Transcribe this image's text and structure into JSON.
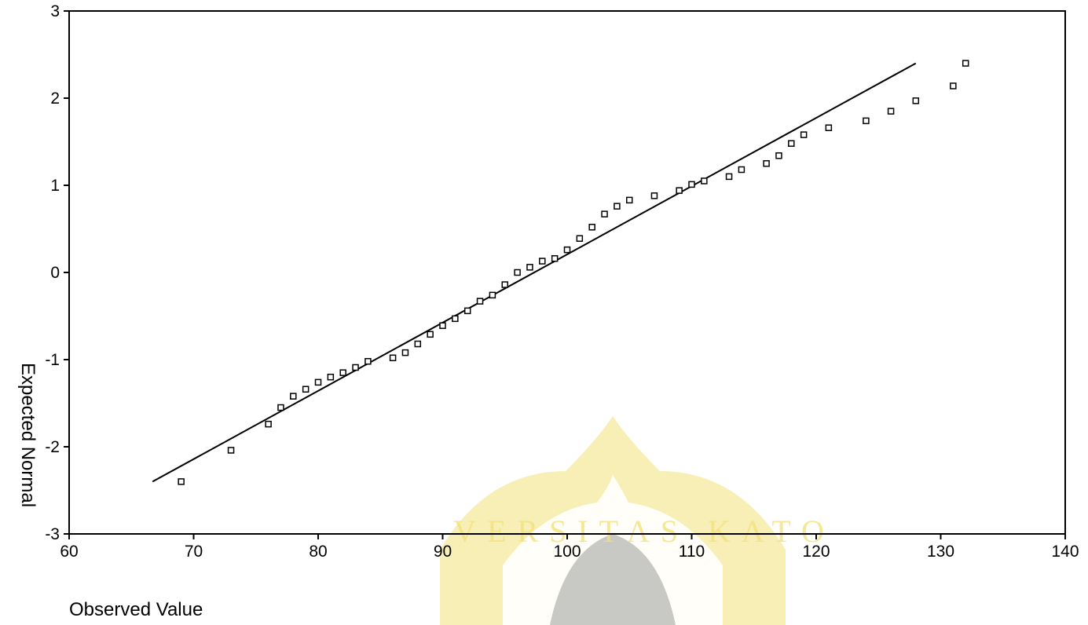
{
  "chart_data": {
    "type": "scatter",
    "title": "",
    "xlabel": "Observed Value",
    "ylabel": "Expected Normal",
    "xlim": [
      60,
      140
    ],
    "ylim": [
      -3,
      3
    ],
    "x_ticks": [
      60,
      70,
      80,
      90,
      100,
      110,
      120,
      130,
      140
    ],
    "y_ticks": [
      -3,
      -2,
      -1,
      0,
      1,
      2,
      3
    ],
    "grid": false,
    "legend": "none",
    "watermark_text": "VERSITAS KATO",
    "colors": {
      "axis": "#000000",
      "points": "#000000",
      "line": "#000000",
      "watermark": "#f3e27a"
    },
    "reference_line": {
      "x": [
        66.7,
        128
      ],
      "y": [
        -2.4,
        2.4
      ]
    },
    "series": [
      {
        "x": [
          69,
          73,
          76,
          77,
          78,
          79,
          80,
          81,
          82,
          83,
          84,
          86,
          87,
          88,
          89,
          90,
          91,
          92,
          93,
          94,
          95,
          96,
          97,
          98,
          99,
          100,
          101,
          102,
          103,
          104,
          105,
          107,
          109,
          110,
          111,
          113,
          114,
          116,
          117,
          118,
          119,
          121,
          124,
          126,
          128,
          131,
          132
        ],
        "y": [
          -2.4,
          -2.04,
          -1.74,
          -1.55,
          -1.42,
          -1.34,
          -1.26,
          -1.2,
          -1.15,
          -1.09,
          -1.02,
          -0.98,
          -0.92,
          -0.82,
          -0.71,
          -0.61,
          -0.53,
          -0.44,
          -0.33,
          -0.26,
          -0.14,
          0.0,
          0.06,
          0.13,
          0.16,
          0.26,
          0.39,
          0.52,
          0.67,
          0.76,
          0.83,
          0.88,
          0.94,
          1.01,
          1.05,
          1.1,
          1.18,
          1.25,
          1.34,
          1.48,
          1.58,
          1.66,
          1.74,
          1.85,
          1.97,
          2.14,
          2.4
        ]
      }
    ]
  }
}
